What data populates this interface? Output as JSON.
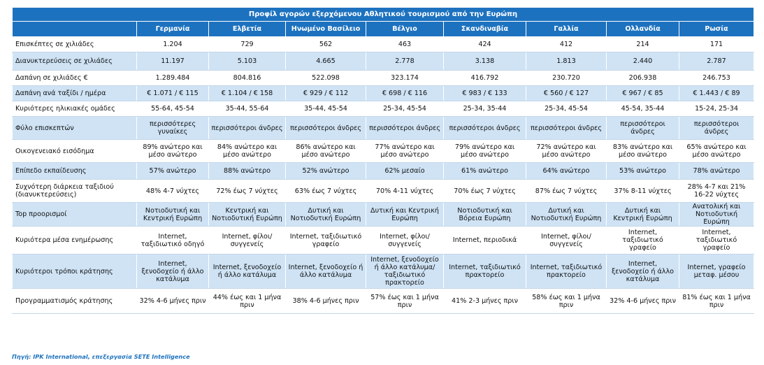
{
  "title": "Προφίλ αγορών εξερχόμενου Αθλητικού τουρισμού από την Ευρώπη",
  "columns": [
    "Γερμανία",
    "Ελβετία",
    "Ηνωμένο Βασίλειο",
    "Βέλγιο",
    "Σκανδιναβία",
    "Γαλλία",
    "Ολλανδία",
    "Ρωσία"
  ],
  "rows": [
    {
      "label": "Επισκέπτες σε χιλιάδες",
      "cells": [
        "1.204",
        "729",
        "562",
        "463",
        "424",
        "412",
        "214",
        "171"
      ]
    },
    {
      "label": "Διανυκτερεύσεις σε χιλιάδες",
      "cells": [
        "11.197",
        "5.103",
        "4.665",
        "2.778",
        "3.138",
        "1.813",
        "2.440",
        "2.787"
      ]
    },
    {
      "label": "Δαπάνη σε χιλιάδες €",
      "cells": [
        "1.289.484",
        "804.816",
        "522.098",
        "323.174",
        "416.792",
        "230.720",
        "206.938",
        "246.753"
      ]
    },
    {
      "label": "Δαπάνη ανά ταξίδι / ημέρα",
      "cells": [
        "€ 1.071 / € 115",
        "€ 1.104 / € 158",
        "€ 929 / € 112",
        "€ 698 / € 116",
        "€ 983 / € 133",
        "€ 560 / € 127",
        "€ 967 / € 85",
        "€ 1.443 / € 89"
      ]
    },
    {
      "label": "Κυριότερες ηλικιακές ομάδες",
      "cells": [
        "55-64, 45-54",
        "35-44, 55-64",
        "35-44, 45-54",
        "25-34, 45-54",
        "25-34, 35-44",
        "25-34, 45-54",
        "45-54, 35-44",
        "15-24, 25-34"
      ]
    },
    {
      "label": "Φύλο επισκεπτών",
      "cells": [
        "περισσότερες γυναίκες",
        "περισσότεροι άνδρες",
        "περισσότεροι άνδρες",
        "περισσότεροι άνδρες",
        "περισσότεροι άνδρες",
        "περισσότεροι άνδρες",
        "περισσότεροι άνδρες",
        "περισσότεροι άνδρες"
      ]
    },
    {
      "label": "Οικογενειακό εισόδημα",
      "cells": [
        "89% ανώτερο και μέσο ανώτερο",
        "84% ανώτερο και μέσο ανώτερο",
        "86% ανώτερο και μέσο ανώτερο",
        "77% ανώτερο και μέσο ανώτερο",
        "79% ανώτερο και μέσο ανώτερο",
        "72% ανώτερο και μέσο ανώτερο",
        "83% ανώτερο και μέσο ανώτερο",
        "65% ανώτερο και μέσο ανώτερο"
      ]
    },
    {
      "label": "Επίπεδο εκπαίδευσης",
      "cells": [
        "57% ανώτερο",
        "88% ανώτερο",
        "52% ανώτερο",
        "62% μεσαίο",
        "61% ανώτερο",
        "64% ανώτερο",
        "53% ανώτερο",
        "78% ανώτερο"
      ]
    },
    {
      "label": "Συχνότερη διάρκεια ταξιδιού (διανυκτερεύσεις)",
      "cells": [
        "48% 4-7 νύχτες",
        "72% έως 7 νύχτες",
        "63% έως 7 νύχτες",
        "70% 4-11 νύχτες",
        "70% έως 7 νύχτες",
        "87% έως 7 νύχτες",
        "37% 8-11 νύχτες",
        "28% 4-7 και 21% 16-22 νύχτες"
      ]
    },
    {
      "label": "Top προορισμοί",
      "cells": [
        "Νοτιοδυτική και Κεντρική Ευρώπη",
        "Κεντρική και Νοτιοδυτική Ευρώπη",
        "Δυτική και Νοτιοδυτική Ευρώπη",
        "Δυτική και Κεντρική Ευρώπη",
        "Νοτιοδυτική και Βόρεια Ευρώπη",
        "Δυτική και Νοτιοδυτική Ευρώπη",
        "Δυτική και Κεντρική Ευρώπη",
        "Ανατολική και Νοτιοδυτική Ευρώπη"
      ]
    },
    {
      "label": "Κυριότερα μέσα ενημέρωσης",
      "cells": [
        "Internet, ταξιδιωτικό οδηγό",
        "Internet, φίλοι/συγγενείς",
        "Internet, ταξιδιωτικό γραφείο",
        "Internet, φίλοι/συγγενείς",
        "Internet, περιοδικά",
        "Internet, φίλοι/συγγενείς",
        "Internet, ταξιδιωτικό γραφείο",
        "Internet, ταξιδιωτικό γραφείο"
      ]
    },
    {
      "label": "Κυριότεροι τρόποι κράτησης",
      "cells": [
        "Internet, ξενοδοχείο ή άλλο κατάλυμα",
        "Internet, ξενοδοχείο ή άλλο κατάλυμα",
        "Internet, ξενοδοχείο ή άλλο κατάλυμα",
        "Internet, ξενοδοχείο ή άλλο κατάλυμα/ ταξιδιωτικό πρακτορείο",
        "Internet, ταξιδιωτικό πρακτορείο",
        "Internet, ταξιδιωτικό πρακτορείο",
        "Internet, ξενοδοχείο ή άλλο κατάλυμα",
        "Internet, γραφείο μεταφ. μέσου"
      ]
    },
    {
      "label": "Προγραμματισμός κράτησης",
      "cells": [
        "32% 4-6 μήνες πριν",
        "44% έως και 1 μήνα πριν",
        "38% 4-6 μήνες πριν",
        "57% έως και 1 μήνα πριν",
        "41% 2-3 μήνες πριν",
        "58% έως και 1 μήνα πριν",
        "32% 4-6 μήνες πριν",
        "81% έως και 1 μήνα πριν"
      ]
    }
  ],
  "source": "Πηγή: IPK International, επεξεργασία SETE Intelligence"
}
